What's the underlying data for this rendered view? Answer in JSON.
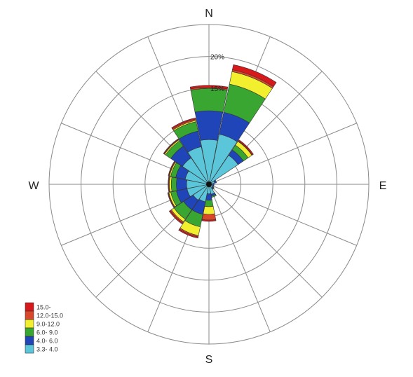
{
  "chart_data": {
    "type": "wind-rose",
    "directions": [
      "N",
      "NNE",
      "NE",
      "ENE",
      "E",
      "ESE",
      "SE",
      "SSE",
      "S",
      "SSW",
      "SW",
      "WSW",
      "W",
      "WNW",
      "NW",
      "NNW"
    ],
    "compass_labels": {
      "n": "N",
      "e": "E",
      "s": "S",
      "w": "W"
    },
    "rings": [
      5,
      10,
      15,
      20,
      25
    ],
    "ring_labels": [
      {
        "value": 15,
        "text": "15%"
      },
      {
        "value": 20,
        "text": "20%"
      }
    ],
    "bins": [
      {
        "label": "15.0-",
        "color": "#d7191c"
      },
      {
        "label": "12.0-15.0",
        "color": "#d9482a"
      },
      {
        "label": "9.0-12.0",
        "color": "#f2ef2e"
      },
      {
        "label": "6.0- 9.0",
        "color": "#3aa632"
      },
      {
        "label": "4.0- 6.0",
        "color": "#1f45b8"
      },
      {
        "label": "3.3- 4.0",
        "color": "#5bc5d9"
      }
    ],
    "series": [
      {
        "direction": "N",
        "values": [
          0.3,
          0.2,
          0.0,
          3.5,
          4.5,
          7.0
        ]
      },
      {
        "direction": "NNE",
        "values": [
          0.8,
          0.3,
          2.0,
          4.5,
          3.5,
          8.0
        ]
      },
      {
        "direction": "NE",
        "values": [
          0.2,
          0.1,
          0.7,
          0.9,
          1.0,
          5.5
        ]
      },
      {
        "direction": "ENE",
        "values": [
          0.0,
          0.0,
          0.0,
          0.0,
          0.3,
          0.9
        ]
      },
      {
        "direction": "E",
        "values": [
          0.0,
          0.0,
          0.0,
          0.0,
          0.2,
          0.6
        ]
      },
      {
        "direction": "ESE",
        "values": [
          0.0,
          0.0,
          0.0,
          0.0,
          0.2,
          0.6
        ]
      },
      {
        "direction": "SE",
        "values": [
          0.0,
          0.0,
          0.0,
          0.1,
          0.2,
          0.7
        ]
      },
      {
        "direction": "SSE",
        "values": [
          0.0,
          0.0,
          0.0,
          0.2,
          0.3,
          1.6
        ]
      },
      {
        "direction": "S",
        "values": [
          0.2,
          0.9,
          1.2,
          1.0,
          1.0,
          1.5
        ]
      },
      {
        "direction": "SSW",
        "values": [
          0.2,
          0.2,
          1.4,
          2.0,
          2.0,
          2.8
        ]
      },
      {
        "direction": "SW",
        "values": [
          0.2,
          0.2,
          0.5,
          1.8,
          1.8,
          3.0
        ]
      },
      {
        "direction": "WSW",
        "values": [
          0.1,
          0.1,
          0.3,
          0.9,
          1.7,
          3.5
        ]
      },
      {
        "direction": "W",
        "values": [
          0.1,
          0.1,
          0.3,
          0.8,
          1.6,
          3.5
        ]
      },
      {
        "direction": "WNW",
        "values": [
          0.1,
          0.1,
          0.2,
          0.8,
          1.5,
          3.8
        ]
      },
      {
        "direction": "NW",
        "values": [
          0.1,
          0.1,
          0.2,
          1.0,
          2.2,
          5.0
        ]
      },
      {
        "direction": "NNW",
        "values": [
          0.2,
          0.2,
          0.2,
          1.5,
          2.5,
          6.0
        ]
      }
    ],
    "grid": true,
    "legend": "bottom-left"
  }
}
